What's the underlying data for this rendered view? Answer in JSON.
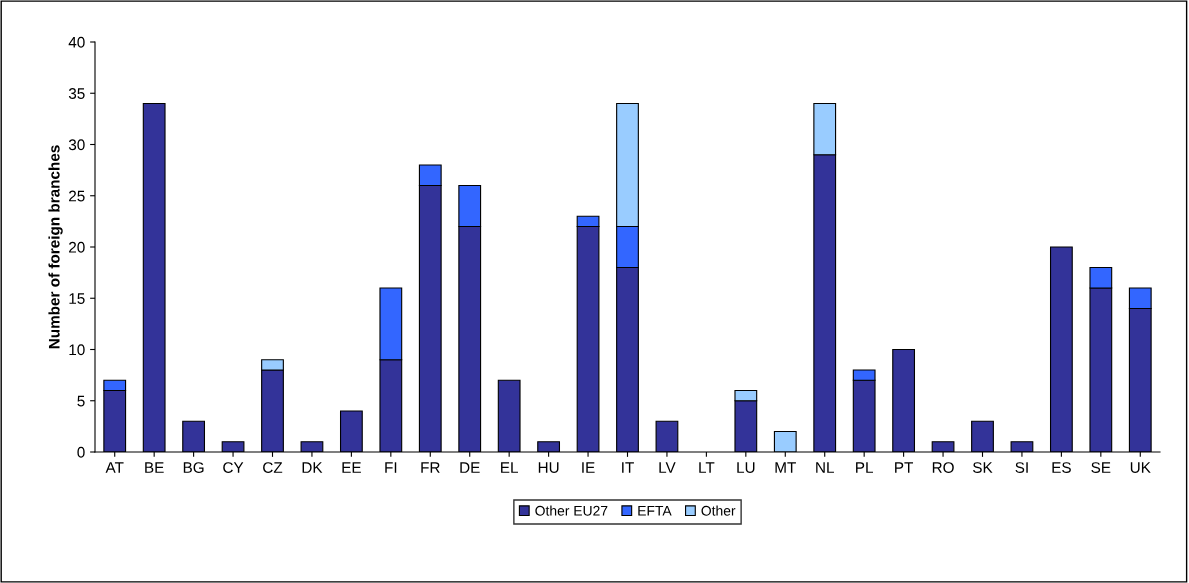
{
  "chart_data": {
    "type": "bar",
    "stacked": true,
    "ylabel": "Number of foreign branches",
    "categories": [
      "AT",
      "BE",
      "BG",
      "CY",
      "CZ",
      "DK",
      "EE",
      "FI",
      "FR",
      "DE",
      "EL",
      "HU",
      "IE",
      "IT",
      "LV",
      "LT",
      "LU",
      "MT",
      "NL",
      "PL",
      "PT",
      "RO",
      "SK",
      "SI",
      "ES",
      "SE",
      "UK"
    ],
    "series": [
      {
        "name": "Other EU27",
        "color": "#333399",
        "values": [
          6,
          34,
          3,
          1,
          8,
          1,
          4,
          9,
          26,
          22,
          7,
          1,
          22,
          18,
          3,
          null,
          5,
          null,
          29,
          7,
          10,
          1,
          3,
          1,
          20,
          16,
          14
        ]
      },
      {
        "name": "EFTA",
        "color": "#3366ff",
        "values": [
          1,
          null,
          null,
          null,
          null,
          null,
          null,
          7,
          2,
          4,
          null,
          null,
          1,
          4,
          null,
          null,
          null,
          null,
          null,
          1,
          null,
          null,
          null,
          null,
          null,
          2,
          2
        ]
      },
      {
        "name": "Other",
        "color": "#99ccff",
        "values": [
          null,
          null,
          null,
          null,
          1,
          null,
          null,
          null,
          null,
          null,
          null,
          null,
          null,
          12,
          null,
          null,
          1,
          2,
          5,
          null,
          null,
          null,
          null,
          null,
          null,
          null,
          null
        ]
      }
    ],
    "ylim": [
      0,
      40
    ],
    "yticks": [
      0,
      5,
      10,
      15,
      20,
      25,
      30,
      35,
      40
    ],
    "grid": false,
    "legend": "bottom"
  }
}
